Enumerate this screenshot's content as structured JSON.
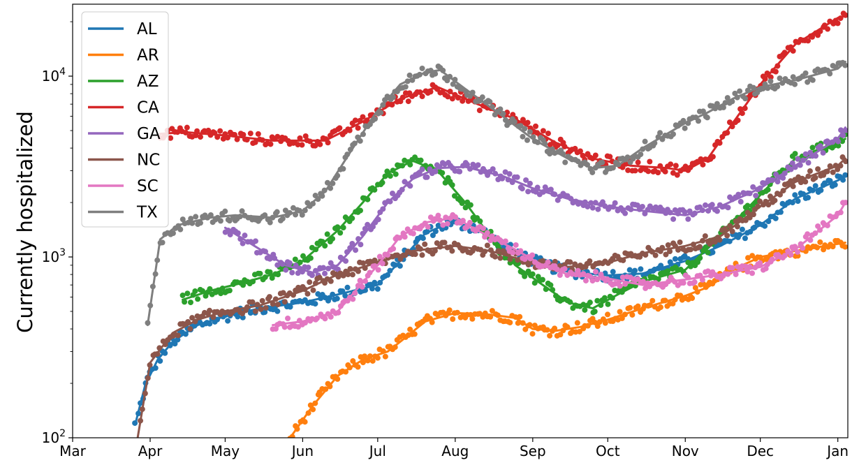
{
  "chart_data": {
    "type": "line",
    "title": "",
    "xlabel": "",
    "ylabel": "Currently hospitalized",
    "yscale": "log",
    "ylim": [
      100,
      25000
    ],
    "xlim": [
      "2020-03-01",
      "2021-01-05"
    ],
    "grid": false,
    "legend_position": "top-left",
    "x_ticks": [
      {
        "date": "2020-03-01",
        "label": "Mar"
      },
      {
        "date": "2020-04-01",
        "label": "Apr"
      },
      {
        "date": "2020-05-01",
        "label": "May"
      },
      {
        "date": "2020-06-01",
        "label": "Jun"
      },
      {
        "date": "2020-07-01",
        "label": "Jul"
      },
      {
        "date": "2020-08-01",
        "label": "Aug"
      },
      {
        "date": "2020-09-01",
        "label": "Sep"
      },
      {
        "date": "2020-10-01",
        "label": "Oct"
      },
      {
        "date": "2020-11-01",
        "label": "Nov"
      },
      {
        "date": "2020-12-01",
        "label": "Dec"
      },
      {
        "date": "2021-01-01",
        "label": "Jan"
      }
    ],
    "y_ticks": [
      {
        "value": 100,
        "base": "10",
        "exp": "2"
      },
      {
        "value": 1000,
        "base": "10",
        "exp": "3"
      },
      {
        "value": 10000,
        "base": "10",
        "exp": "4"
      }
    ],
    "series": [
      {
        "name": "AL",
        "color": "#1f77b4",
        "points": [
          [
            "2020-03-26",
            118
          ],
          [
            "2020-03-30",
            195
          ],
          [
            "2020-04-04",
            270
          ],
          [
            "2020-04-10",
            340
          ],
          [
            "2020-04-20",
            420
          ],
          [
            "2020-05-01",
            470
          ],
          [
            "2020-05-15",
            520
          ],
          [
            "2020-06-01",
            560
          ],
          [
            "2020-06-15",
            620
          ],
          [
            "2020-07-01",
            700
          ],
          [
            "2020-07-10",
            950
          ],
          [
            "2020-07-20",
            1350
          ],
          [
            "2020-07-30",
            1550
          ],
          [
            "2020-08-10",
            1450
          ],
          [
            "2020-08-20",
            1150
          ],
          [
            "2020-09-01",
            950
          ],
          [
            "2020-09-15",
            830
          ],
          [
            "2020-10-01",
            790
          ],
          [
            "2020-10-15",
            810
          ],
          [
            "2020-11-01",
            950
          ],
          [
            "2020-11-15",
            1150
          ],
          [
            "2020-12-01",
            1500
          ],
          [
            "2020-12-15",
            2100
          ],
          [
            "2021-01-01",
            2650
          ],
          [
            "2021-01-04",
            2800
          ]
        ]
      },
      {
        "name": "AR",
        "color": "#ff7f0e",
        "points": [
          [
            "2020-05-27",
            100
          ],
          [
            "2020-06-05",
            150
          ],
          [
            "2020-06-15",
            220
          ],
          [
            "2020-06-25",
            270
          ],
          [
            "2020-07-05",
            300
          ],
          [
            "2020-07-10",
            340
          ],
          [
            "2020-07-20",
            440
          ],
          [
            "2020-08-01",
            490
          ],
          [
            "2020-08-15",
            480
          ],
          [
            "2020-08-25",
            460
          ],
          [
            "2020-09-01",
            400
          ],
          [
            "2020-09-10",
            390
          ],
          [
            "2020-09-20",
            410
          ],
          [
            "2020-10-01",
            450
          ],
          [
            "2020-10-15",
            520
          ],
          [
            "2020-11-01",
            610
          ],
          [
            "2020-11-10",
            680
          ],
          [
            "2020-11-20",
            850
          ],
          [
            "2020-12-01",
            1000
          ],
          [
            "2020-12-15",
            1080
          ],
          [
            "2021-01-04",
            1200
          ]
        ]
      },
      {
        "name": "AZ",
        "color": "#2ca02c",
        "points": [
          [
            "2020-04-14",
            580
          ],
          [
            "2020-04-25",
            650
          ],
          [
            "2020-05-08",
            720
          ],
          [
            "2020-05-20",
            800
          ],
          [
            "2020-06-01",
            950
          ],
          [
            "2020-06-15",
            1400
          ],
          [
            "2020-06-25",
            2000
          ],
          [
            "2020-07-05",
            2900
          ],
          [
            "2020-07-15",
            3400
          ],
          [
            "2020-07-25",
            3000
          ],
          [
            "2020-08-05",
            2000
          ],
          [
            "2020-08-15",
            1300
          ],
          [
            "2020-08-25",
            900
          ],
          [
            "2020-09-05",
            700
          ],
          [
            "2020-09-15",
            560
          ],
          [
            "2020-09-25",
            520
          ],
          [
            "2020-10-05",
            620
          ],
          [
            "2020-10-15",
            730
          ],
          [
            "2020-11-01",
            850
          ],
          [
            "2020-11-15",
            1300
          ],
          [
            "2020-12-01",
            2200
          ],
          [
            "2020-12-15",
            3500
          ],
          [
            "2021-01-04",
            4500
          ]
        ]
      },
      {
        "name": "CA",
        "color": "#d62728",
        "points": [
          [
            "2020-04-05",
            4800
          ],
          [
            "2020-04-15",
            4900
          ],
          [
            "2020-05-01",
            4700
          ],
          [
            "2020-05-20",
            4400
          ],
          [
            "2020-06-10",
            4400
          ],
          [
            "2020-06-25",
            5600
          ],
          [
            "2020-07-10",
            7500
          ],
          [
            "2020-07-25",
            8700
          ],
          [
            "2020-08-10",
            7000
          ],
          [
            "2020-08-25",
            5800
          ],
          [
            "2020-09-10",
            4300
          ],
          [
            "2020-09-25",
            3500
          ],
          [
            "2020-10-10",
            3200
          ],
          [
            "2020-10-25",
            3100
          ],
          [
            "2020-11-01",
            3000
          ],
          [
            "2020-11-10",
            3500
          ],
          [
            "2020-11-20",
            5500
          ],
          [
            "2020-12-01",
            9000
          ],
          [
            "2020-12-15",
            15000
          ],
          [
            "2021-01-01",
            21000
          ],
          [
            "2021-01-04",
            21500
          ]
        ]
      },
      {
        "name": "GA",
        "color": "#9467bd",
        "points": [
          [
            "2020-05-01",
            1450
          ],
          [
            "2020-05-15",
            1100
          ],
          [
            "2020-05-25",
            900
          ],
          [
            "2020-06-05",
            820
          ],
          [
            "2020-06-15",
            900
          ],
          [
            "2020-06-25",
            1300
          ],
          [
            "2020-07-05",
            2000
          ],
          [
            "2020-07-15",
            2700
          ],
          [
            "2020-07-25",
            3100
          ],
          [
            "2020-08-05",
            3150
          ],
          [
            "2020-08-20",
            2800
          ],
          [
            "2020-09-01",
            2400
          ],
          [
            "2020-09-15",
            2100
          ],
          [
            "2020-10-01",
            1900
          ],
          [
            "2020-10-15",
            1800
          ],
          [
            "2020-11-01",
            1700
          ],
          [
            "2020-11-15",
            1900
          ],
          [
            "2020-12-01",
            2400
          ],
          [
            "2020-12-15",
            3200
          ],
          [
            "2021-01-01",
            4500
          ],
          [
            "2021-01-04",
            5200
          ]
        ]
      },
      {
        "name": "NC",
        "color": "#8c564b",
        "points": [
          [
            "2020-03-27",
            100
          ],
          [
            "2020-04-01",
            260
          ],
          [
            "2020-04-10",
            380
          ],
          [
            "2020-04-20",
            450
          ],
          [
            "2020-05-01",
            500
          ],
          [
            "2020-05-15",
            540
          ],
          [
            "2020-06-01",
            650
          ],
          [
            "2020-06-15",
            800
          ],
          [
            "2020-07-01",
            930
          ],
          [
            "2020-07-15",
            1080
          ],
          [
            "2020-08-01",
            1150
          ],
          [
            "2020-08-15",
            1080
          ],
          [
            "2020-09-01",
            930
          ],
          [
            "2020-09-15",
            880
          ],
          [
            "2020-10-01",
            930
          ],
          [
            "2020-10-15",
            1050
          ],
          [
            "2020-11-01",
            1150
          ],
          [
            "2020-11-15",
            1300
          ],
          [
            "2020-12-01",
            1900
          ],
          [
            "2020-12-15",
            2600
          ],
          [
            "2021-01-01",
            3200
          ],
          [
            "2021-01-04",
            3500
          ]
        ]
      },
      {
        "name": "SC",
        "color": "#e377c2",
        "points": [
          [
            "2020-05-20",
            420
          ],
          [
            "2020-06-01",
            440
          ],
          [
            "2020-06-15",
            500
          ],
          [
            "2020-07-01",
            900
          ],
          [
            "2020-07-10",
            1300
          ],
          [
            "2020-07-20",
            1550
          ],
          [
            "2020-08-01",
            1650
          ],
          [
            "2020-08-10",
            1400
          ],
          [
            "2020-08-25",
            1100
          ],
          [
            "2020-09-05",
            900
          ],
          [
            "2020-09-15",
            800
          ],
          [
            "2020-10-01",
            760
          ],
          [
            "2020-10-15",
            700
          ],
          [
            "2020-11-01",
            750
          ],
          [
            "2020-11-15",
            800
          ],
          [
            "2020-12-01",
            880
          ],
          [
            "2020-12-15",
            1100
          ],
          [
            "2021-01-01",
            1700
          ],
          [
            "2021-01-04",
            2000
          ]
        ]
      },
      {
        "name": "TX",
        "color": "#7f7f7f",
        "points": [
          [
            "2020-03-31",
            420
          ],
          [
            "2020-04-05",
            1250
          ],
          [
            "2020-04-12",
            1500
          ],
          [
            "2020-04-25",
            1650
          ],
          [
            "2020-05-05",
            1700
          ],
          [
            "2020-05-20",
            1650
          ],
          [
            "2020-06-01",
            1800
          ],
          [
            "2020-06-10",
            2300
          ],
          [
            "2020-06-20",
            3800
          ],
          [
            "2020-06-30",
            6200
          ],
          [
            "2020-07-10",
            9000
          ],
          [
            "2020-07-20",
            10500
          ],
          [
            "2020-07-26",
            10800
          ],
          [
            "2020-08-05",
            8500
          ],
          [
            "2020-08-20",
            6000
          ],
          [
            "2020-09-01",
            4500
          ],
          [
            "2020-09-15",
            3500
          ],
          [
            "2020-09-25",
            3100
          ],
          [
            "2020-10-05",
            3200
          ],
          [
            "2020-10-15",
            4000
          ],
          [
            "2020-11-01",
            5500
          ],
          [
            "2020-11-10",
            6300
          ],
          [
            "2020-11-20",
            7500
          ],
          [
            "2020-12-01",
            8700
          ],
          [
            "2020-12-15",
            9500
          ],
          [
            "2021-01-01",
            11000
          ],
          [
            "2021-01-04",
            12000
          ]
        ]
      }
    ]
  }
}
